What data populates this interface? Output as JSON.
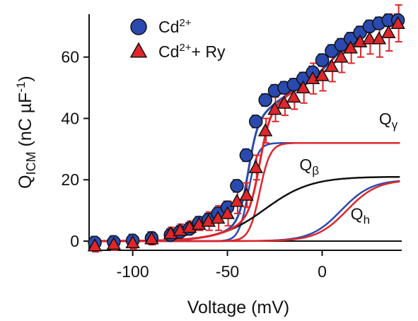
{
  "chart_data": {
    "type": "scatter",
    "xlabel": "Voltage (mV)",
    "ylabel_main": "Q",
    "ylabel_sub": "ICM",
    "ylabel_units_pre": " (nC µF",
    "ylabel_units_sup": "-1",
    "ylabel_units_post": ")",
    "xlim": [
      -123,
      42
    ],
    "ylim": [
      -3,
      74
    ],
    "xticks": [
      -100,
      -50,
      0
    ],
    "yticks": [
      0,
      20,
      40,
      60
    ],
    "grid": false,
    "legend": {
      "position": "top-left",
      "entries": [
        {
          "base": "Cd",
          "sup": "2+",
          "after": ""
        },
        {
          "base": "Cd",
          "sup": "2+",
          "after": "+ Ry"
        }
      ]
    },
    "colors": {
      "cd": "#2a4ab0",
      "cd_ry": "#e0262a",
      "marker_edge": "#111111",
      "q_beta": "#111111",
      "error_bar_cd": "#2e50c0",
      "error_bar_cd_ry": "#e0262a"
    },
    "series": [
      {
        "name": "Cd2+",
        "marker": "circle",
        "x": [
          -120,
          -110,
          -100,
          -90,
          -80,
          -75,
          -70,
          -65,
          -60,
          -55,
          -50,
          -45,
          -40,
          -35,
          -30,
          -25,
          -20,
          -15,
          -10,
          -5,
          0,
          5,
          10,
          15,
          20,
          25,
          30,
          35,
          40
        ],
        "y": [
          -0.5,
          -0.3,
          0.2,
          1,
          2,
          3,
          4,
          6,
          7,
          9,
          11,
          18,
          28,
          39,
          46,
          49,
          50,
          51,
          53,
          55,
          59,
          62,
          64,
          66,
          68,
          70,
          71,
          72,
          72
        ],
        "err": [
          2,
          2,
          2,
          2,
          2,
          2,
          2,
          2,
          2,
          2,
          2,
          2,
          2,
          2,
          2,
          2,
          2,
          2,
          2,
          2,
          2,
          2,
          2,
          2,
          2,
          2,
          2,
          2,
          2
        ]
      },
      {
        "name": "Cd2+ + Ry",
        "marker": "triangle",
        "x": [
          -120,
          -110,
          -100,
          -90,
          -80,
          -75,
          -70,
          -65,
          -60,
          -55,
          -50,
          -45,
          -40,
          -35,
          -30,
          -25,
          -20,
          -15,
          -10,
          -5,
          0,
          5,
          10,
          15,
          20,
          25,
          30,
          35,
          40
        ],
        "y": [
          -1.5,
          -1,
          -0.5,
          0.8,
          2.5,
          3.5,
          4.5,
          5.5,
          6.5,
          7.5,
          9,
          13,
          15,
          24,
          36,
          43,
          45,
          47,
          50,
          53,
          54,
          57,
          60,
          63,
          65,
          66,
          66,
          68,
          71
        ],
        "err": [
          2,
          2,
          2,
          2,
          2,
          2,
          2,
          2,
          3,
          4,
          4,
          4,
          4,
          4,
          4,
          4,
          4,
          4,
          5,
          5,
          5,
          5,
          5,
          5,
          5,
          5,
          6,
          6,
          6
        ]
      }
    ],
    "fit_curves": [
      {
        "name": "Q_gamma",
        "label_base": "Q",
        "label_sub": "γ",
        "color": "#2a4ab0",
        "qmax": 32,
        "vhalf": -39,
        "k": 2.5
      },
      {
        "name": "Q_gamma_ry",
        "label_base": "",
        "label_sub": "",
        "color": "#e0262a",
        "qmax": 32,
        "vhalf": -33,
        "k": 2.8
      },
      {
        "name": "Q_beta",
        "label_base": "Q",
        "label_sub": "β",
        "color": "#111111",
        "qmax": 21,
        "vhalf": -30,
        "k": 12
      },
      {
        "name": "Q_h",
        "label_base": "Q",
        "label_sub": "h",
        "color": "#2a4ab0",
        "qmax": 20,
        "vhalf": 10,
        "k": 8
      },
      {
        "name": "Q_h_ry",
        "label_base": "",
        "label_sub": "",
        "color": "#e0262a",
        "qmax": 20,
        "vhalf": 13,
        "k": 8
      },
      {
        "name": "total_cd",
        "label_base": "",
        "label_sub": "",
        "color": "#2a4ab0",
        "components": [
          "Q_gamma",
          "Q_beta",
          "Q_h"
        ]
      },
      {
        "name": "total_cd_ry",
        "label_base": "",
        "label_sub": "",
        "color": "#e0262a",
        "components": [
          "Q_gamma_ry",
          "Q_beta",
          "Q_h_ry"
        ]
      }
    ],
    "curve_labels": [
      {
        "for": "Q_gamma",
        "x": 30,
        "y": 38
      },
      {
        "for": "Q_beta",
        "x": -12,
        "y": 23
      },
      {
        "for": "Q_h",
        "x": 15,
        "y": 7
      }
    ]
  }
}
